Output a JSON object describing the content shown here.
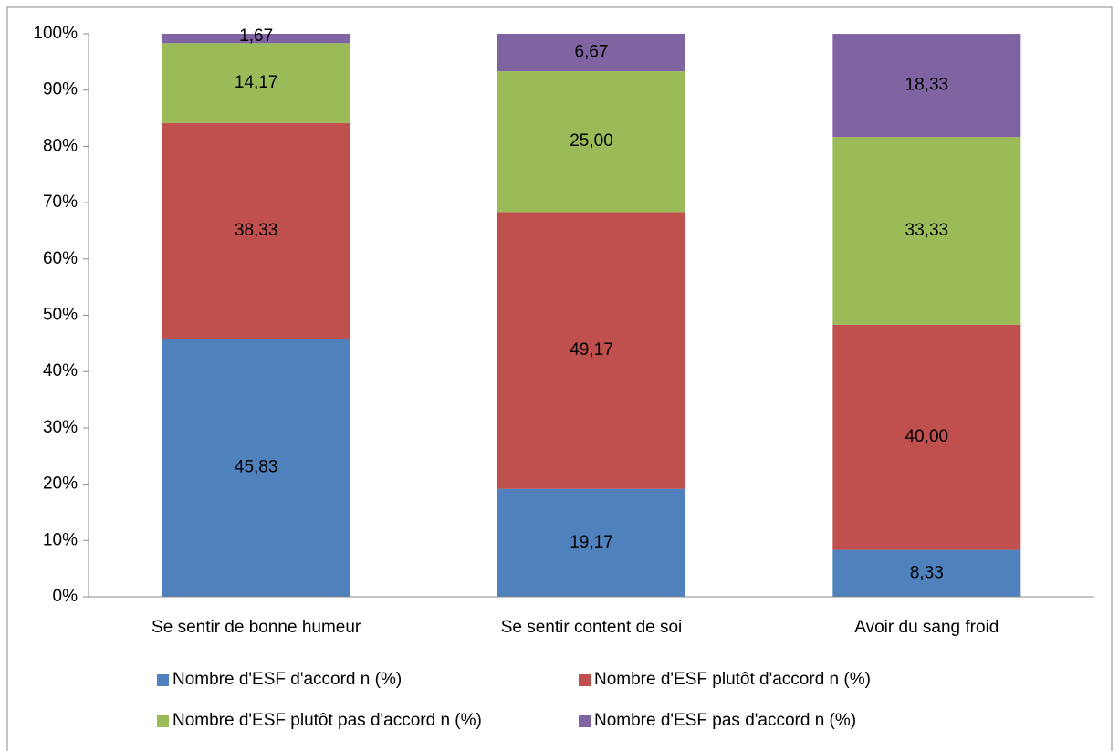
{
  "chart_data": {
    "type": "stacked_bar",
    "categories": [
      "Se sentir de bonne humeur",
      "Se sentir content de soi",
      "Avoir du sang froid"
    ],
    "series": [
      {
        "name": "Nombre d'ESF d'accord n (%)",
        "color": "#4f81bd",
        "values": [
          45.83,
          19.17,
          8.33
        ],
        "value_labels": [
          "45,83",
          "19,17",
          "8,33"
        ]
      },
      {
        "name": "Nombre d'ESF plutôt d'accord n (%)",
        "color": "#c0504d",
        "values": [
          38.33,
          49.17,
          40.0
        ],
        "value_labels": [
          "38,33",
          "49,17",
          "40,00"
        ]
      },
      {
        "name": "Nombre d'ESF plutôt pas d'accord n (%)",
        "color": "#9bbb59",
        "values": [
          14.17,
          25.0,
          33.33
        ],
        "value_labels": [
          "14,17",
          "25,00",
          "33,33"
        ]
      },
      {
        "name": "Nombre d'ESF pas d'accord n (%)",
        "color": "#8064a2",
        "values": [
          1.67,
          6.67,
          18.33
        ],
        "value_labels": [
          "1,67",
          "6,67",
          "18,33"
        ]
      }
    ],
    "ylim": [
      0,
      100
    ],
    "yticks": [
      {
        "value": 0,
        "label": "0%"
      },
      {
        "value": 10,
        "label": "10%"
      },
      {
        "value": 20,
        "label": "20%"
      },
      {
        "value": 30,
        "label": "30%"
      },
      {
        "value": 40,
        "label": "40%"
      },
      {
        "value": 50,
        "label": "50%"
      },
      {
        "value": 60,
        "label": "60%"
      },
      {
        "value": 70,
        "label": "70%"
      },
      {
        "value": 80,
        "label": "80%"
      },
      {
        "value": 90,
        "label": "90%"
      },
      {
        "value": 100,
        "label": "100%"
      }
    ],
    "legend": "bottom"
  }
}
